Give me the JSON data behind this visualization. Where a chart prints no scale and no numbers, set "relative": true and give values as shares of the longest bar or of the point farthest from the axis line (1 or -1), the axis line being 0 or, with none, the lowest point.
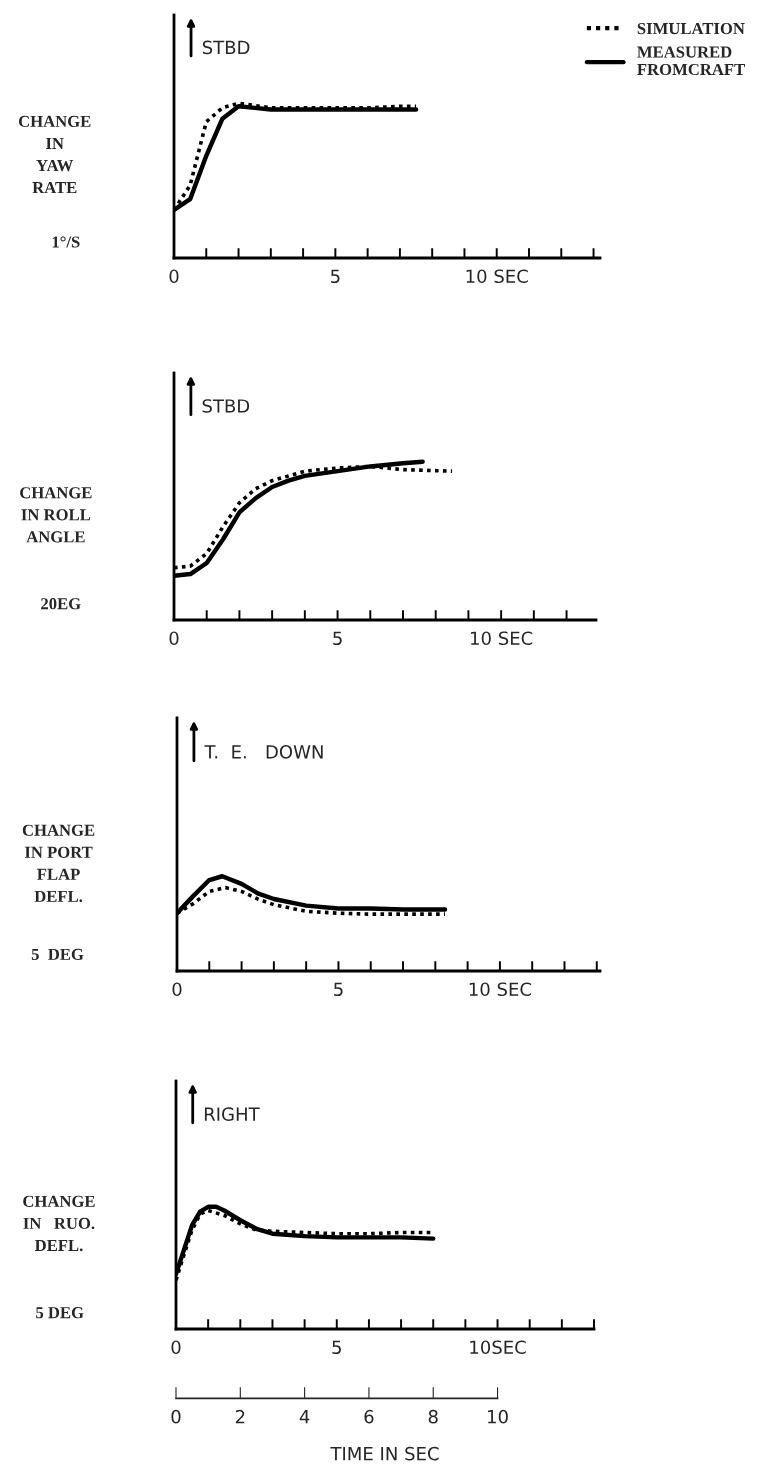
{
  "chart_data": [
    {
      "type": "line",
      "relative": true,
      "ylabel": "CHANGE\nIN\nYAW\nRATE",
      "annotations": [
        "STBD",
        "1°/S"
      ],
      "legend": "top right",
      "xlim": [
        0,
        13.2
      ],
      "xticks": [
        0,
        {
          "value": 1,
          "label": null
        },
        {
          "value": 2,
          "label": null
        },
        {
          "value": 3,
          "label": null
        },
        {
          "value": 4,
          "label": null
        },
        5,
        {
          "value": 6,
          "label": null
        },
        {
          "value": 7,
          "label": null
        },
        {
          "value": 8,
          "label": null
        },
        {
          "value": 9,
          "label": null
        },
        {
          "value": 10,
          "label": "10 SEC"
        },
        {
          "value": 11,
          "label": null
        },
        {
          "value": 12,
          "label": null
        },
        {
          "value": 13,
          "label": null
        }
      ],
      "series": [
        {
          "name": "SIMULATION",
          "color": "#000000",
          "line_style": "dotted",
          "x": [
            0,
            0.5,
            1,
            1.5,
            2,
            3,
            4,
            5,
            6,
            7,
            7.5
          ],
          "values": [
            0.31,
            0.47,
            0.88,
            0.97,
            1,
            0.97,
            0.97,
            0.97,
            0.97,
            0.98,
            0.98
          ]
        },
        {
          "name": "MEASURED\nFROMCRAFT",
          "color": "#000000",
          "line_style": "solid",
          "x": [
            0,
            0.5,
            1,
            1.5,
            2,
            2.5,
            3,
            4,
            5,
            6,
            7,
            7.5
          ],
          "values": [
            0.31,
            0.38,
            0.66,
            0.9,
            0.98,
            0.97,
            0.96,
            0.96,
            0.96,
            0.96,
            0.96,
            0.96
          ]
        }
      ]
    },
    {
      "type": "line",
      "relative": true,
      "ylabel": "CHANGE\nIN ROLL\nANGLE",
      "annotations": [
        "STBD",
        "20EG"
      ],
      "xlim": [
        0,
        12.9
      ],
      "xticks": [
        0,
        {
          "value": 1,
          "label": null
        },
        {
          "value": 2,
          "label": null
        },
        {
          "value": 3,
          "label": null
        },
        {
          "value": 4,
          "label": null
        },
        5,
        {
          "value": 6,
          "label": null
        },
        {
          "value": 7,
          "label": null
        },
        {
          "value": 8,
          "label": null
        },
        {
          "value": 9,
          "label": null
        },
        {
          "value": 10,
          "label": "10 SEC"
        },
        {
          "value": 11,
          "label": null
        },
        {
          "value": 12,
          "label": null
        }
      ],
      "series": [
        {
          "color": "#000000",
          "line_style": "dotted",
          "x": [
            0,
            0.5,
            1,
            1.5,
            2,
            2.5,
            3,
            3.5,
            4,
            5,
            6,
            7,
            8.5
          ],
          "values": [
            0.33,
            0.34,
            0.42,
            0.59,
            0.74,
            0.83,
            0.88,
            0.91,
            0.94,
            0.96,
            0.97,
            0.95,
            0.94
          ]
        },
        {
          "color": "#000000",
          "line_style": "solid",
          "x": [
            0,
            0.5,
            1,
            1.5,
            2,
            2.5,
            3,
            3.5,
            4,
            5,
            6,
            7,
            7.6
          ],
          "values": [
            0.28,
            0.29,
            0.36,
            0.51,
            0.68,
            0.77,
            0.84,
            0.88,
            0.91,
            0.94,
            0.97,
            0.99,
            1
          ]
        }
      ]
    },
    {
      "type": "line",
      "relative": true,
      "ylabel": "CHANGE\nIN PORT\nFLAP\nDEFL.",
      "annotations": [
        "T.  E.   DOWN",
        "5  DEG"
      ],
      "xlim": [
        0,
        13.1
      ],
      "xticks": [
        0,
        {
          "value": 1,
          "label": null
        },
        {
          "value": 2,
          "label": null
        },
        {
          "value": 3,
          "label": null
        },
        {
          "value": 4,
          "label": null
        },
        5,
        {
          "value": 6,
          "label": null
        },
        {
          "value": 7,
          "label": null
        },
        {
          "value": 8,
          "label": null
        },
        {
          "value": 9,
          "label": null
        },
        {
          "value": 10,
          "label": "10 SEC"
        },
        {
          "value": 11,
          "label": null
        },
        {
          "value": 12,
          "label": null
        },
        {
          "value": 13,
          "label": null
        }
      ],
      "series": [
        {
          "color": "#000000",
          "line_style": "dotted",
          "x": [
            0,
            0.5,
            1,
            1.5,
            2,
            2.5,
            3,
            4,
            5,
            6,
            8.3
          ],
          "values": [
            0.61,
            0.71,
            0.84,
            0.88,
            0.84,
            0.76,
            0.7,
            0.63,
            0.61,
            0.6,
            0.6
          ]
        },
        {
          "color": "#000000",
          "line_style": "solid",
          "x": [
            0,
            0.5,
            1,
            1.4,
            2,
            2.5,
            3,
            4,
            5,
            6,
            7,
            8.3
          ],
          "values": [
            0.61,
            0.79,
            0.96,
            1,
            0.92,
            0.82,
            0.76,
            0.69,
            0.66,
            0.66,
            0.65,
            0.65
          ]
        }
      ]
    },
    {
      "type": "line",
      "relative": true,
      "ylabel": "CHANGE\nIN   RUO.\nDEFL.",
      "annotations": [
        "RIGHT",
        "5 DEG"
      ],
      "xlim": [
        0,
        13
      ],
      "xticks": [
        0,
        {
          "value": 1,
          "label": null
        },
        {
          "value": 2,
          "label": null
        },
        {
          "value": 3,
          "label": null
        },
        {
          "value": 4,
          "label": null
        },
        5,
        {
          "value": 6,
          "label": null
        },
        {
          "value": 7,
          "label": null
        },
        {
          "value": 8,
          "label": null
        },
        {
          "value": 9,
          "label": null
        },
        {
          "value": 10,
          "label": "10SEC"
        },
        {
          "value": 11,
          "label": null
        },
        {
          "value": 12,
          "label": null
        },
        {
          "value": 13,
          "label": null
        }
      ],
      "x2lim": [
        0,
        10
      ],
      "x2ticks": [
        0,
        2,
        4,
        6,
        8,
        10
      ],
      "x2label": "TIME IN SEC",
      "series": [
        {
          "color": "#000000",
          "line_style": "dotted",
          "x": [
            0,
            0.25,
            0.5,
            0.75,
            1,
            1.5,
            2,
            2.5,
            3,
            4,
            5,
            6,
            7,
            8
          ],
          "values": [
            0.4,
            0.61,
            0.81,
            0.94,
            0.97,
            0.93,
            0.86,
            0.81,
            0.8,
            0.79,
            0.78,
            0.78,
            0.79,
            0.79
          ]
        },
        {
          "color": "#000000",
          "line_style": "solid",
          "x": [
            0,
            0.25,
            0.5,
            0.75,
            1,
            1.25,
            1.5,
            2,
            2.5,
            3,
            4,
            5,
            6,
            7,
            8
          ],
          "values": [
            0.45,
            0.65,
            0.85,
            0.96,
            1,
            1,
            0.97,
            0.89,
            0.82,
            0.78,
            0.76,
            0.75,
            0.75,
            0.75,
            0.74
          ]
        }
      ]
    }
  ]
}
